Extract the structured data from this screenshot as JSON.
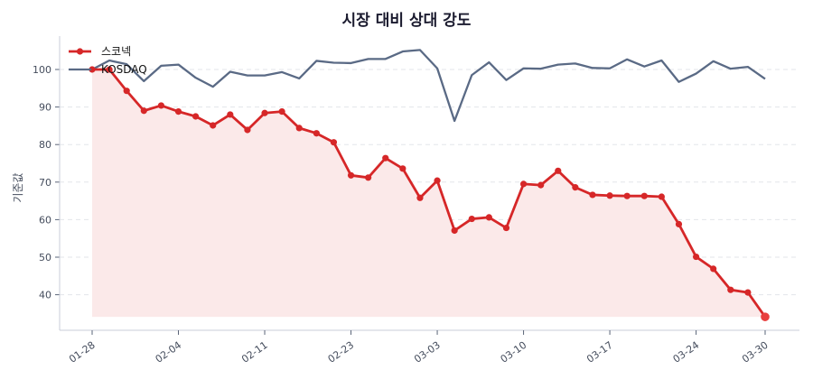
{
  "chart_data": {
    "type": "line",
    "title": "시장 대비 상대 강도",
    "xlabel": "",
    "ylabel": "기준값",
    "ylim": [
      31,
      109
    ],
    "yticks": [
      40,
      50,
      60,
      70,
      80,
      90,
      100
    ],
    "xtick_labels": [
      "01-28",
      "02-04",
      "02-11",
      "02-23",
      "03-03",
      "03-10",
      "03-17",
      "03-24",
      "03-30"
    ],
    "xtick_indices": [
      0,
      5,
      10,
      15,
      20,
      25,
      30,
      35,
      39
    ],
    "grid": "y dashed",
    "legend_position": "upper left",
    "series": [
      {
        "name": "스코넥",
        "color": "#d62728",
        "fill": true,
        "markers": true,
        "values": [
          100,
          100,
          94.3,
          89,
          90.4,
          88.8,
          87.5,
          85.1,
          88,
          83.9,
          88.4,
          88.8,
          84.4,
          83,
          80.6,
          71.8,
          71.2,
          76.4,
          73.6,
          65.8,
          70.4,
          57.1,
          60.2,
          60.6,
          57.8,
          69.5,
          69.2,
          73,
          68.6,
          66.6,
          66.4,
          66.3,
          66.3,
          66.1,
          58.8,
          50.1,
          46.9,
          41.3,
          40.6,
          34.1
        ]
      },
      {
        "name": "KOSDAQ",
        "color": "#5a6a85",
        "fill": false,
        "markers": false,
        "values": [
          100,
          102.4,
          101.4,
          96.9,
          101,
          101.3,
          97.8,
          95.4,
          99.4,
          98.4,
          98.4,
          99.3,
          97.6,
          102.3,
          101.8,
          101.7,
          102.8,
          102.8,
          104.8,
          105.2,
          100.3,
          86.3,
          98.5,
          101.9,
          97.2,
          100.3,
          100.2,
          101.3,
          101.6,
          100.4,
          100.3,
          102.7,
          100.8,
          102.4,
          96.7,
          98.9,
          102.2,
          100.2,
          100.7,
          97.5
        ]
      }
    ]
  }
}
